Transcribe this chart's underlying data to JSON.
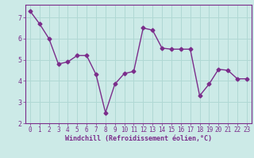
{
  "x": [
    0,
    1,
    2,
    3,
    4,
    5,
    6,
    7,
    8,
    9,
    10,
    11,
    12,
    13,
    14,
    15,
    16,
    17,
    18,
    19,
    20,
    21,
    22,
    23
  ],
  "y": [
    7.3,
    6.7,
    6.0,
    4.8,
    4.9,
    5.2,
    5.2,
    4.3,
    2.5,
    3.85,
    4.35,
    4.45,
    6.5,
    6.4,
    5.55,
    5.5,
    5.5,
    5.5,
    3.3,
    3.85,
    4.55,
    4.5,
    4.1,
    4.1
  ],
  "line_color": "#7b2d8b",
  "marker": "D",
  "marker_size": 2.5,
  "bg_color": "#cceae7",
  "grid_color": "#b0d8d4",
  "xlabel": "Windchill (Refroidissement éolien,°C)",
  "xlabel_color": "#7b2d8b",
  "tick_color": "#7b2d8b",
  "spine_color": "#7b2d8b",
  "ylim": [
    2.0,
    7.6
  ],
  "xlim": [
    -0.5,
    23.5
  ],
  "yticks": [
    2,
    3,
    4,
    5,
    6,
    7
  ],
  "xticks": [
    0,
    1,
    2,
    3,
    4,
    5,
    6,
    7,
    8,
    9,
    10,
    11,
    12,
    13,
    14,
    15,
    16,
    17,
    18,
    19,
    20,
    21,
    22,
    23
  ],
  "linewidth": 1.0,
  "tick_fontsize": 5.5,
  "xlabel_fontsize": 6.0
}
